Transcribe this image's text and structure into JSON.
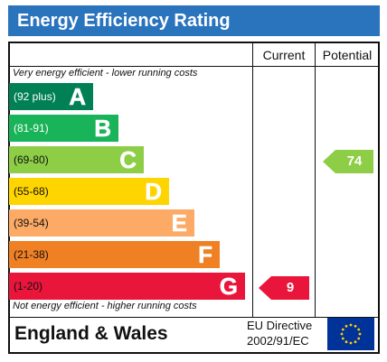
{
  "title": "Energy Efficiency Rating",
  "columns": {
    "current": "Current",
    "potential": "Potential"
  },
  "top_caption": "Very energy efficient - lower running costs",
  "bottom_caption": "Not energy efficient - higher running costs",
  "bands": [
    {
      "range": "(92 plus)",
      "letter": "A",
      "color": "#008054"
    },
    {
      "range": "(81-91)",
      "letter": "B",
      "color": "#19b459"
    },
    {
      "range": "(69-80)",
      "letter": "C",
      "color": "#8dce46"
    },
    {
      "range": "(55-68)",
      "letter": "D",
      "color": "#ffd500"
    },
    {
      "range": "(39-54)",
      "letter": "E",
      "color": "#fcaa65"
    },
    {
      "range": "(21-38)",
      "letter": "F",
      "color": "#ef8023"
    },
    {
      "range": "(1-20)",
      "letter": "G",
      "color": "#e9153b"
    }
  ],
  "current": {
    "value": "9",
    "band": "G",
    "color": "#e9153b"
  },
  "potential": {
    "value": "74",
    "band": "C",
    "color": "#8dce46"
  },
  "footer": {
    "region": "England & Wales",
    "directive_line1": "EU Directive",
    "directive_line2": "2002/91/EC",
    "flag_icon": "eu-flag-icon"
  }
}
